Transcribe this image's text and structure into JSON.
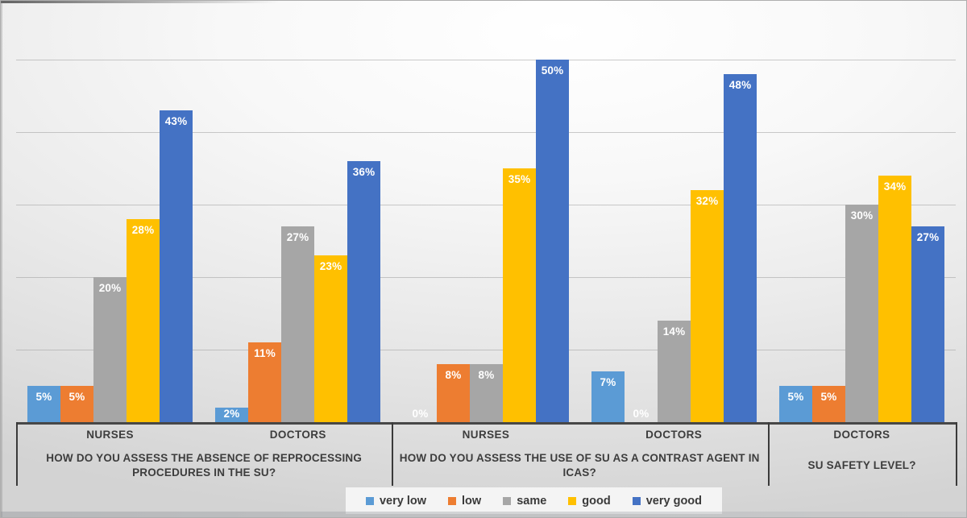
{
  "chart_data": {
    "type": "bar",
    "title": "",
    "xlabel": "",
    "ylabel": "",
    "value_suffix": "%",
    "ylim": [
      0,
      52
    ],
    "gridline_values": [
      10,
      20,
      30,
      40,
      50
    ],
    "grid": true,
    "legend_position": "bottom",
    "series": [
      {
        "name": "very low",
        "color": "#5B9BD5"
      },
      {
        "name": "low",
        "color": "#ED7D31"
      },
      {
        "name": "same",
        "color": "#A6A6A6"
      },
      {
        "name": "good",
        "color": "#FFC000"
      },
      {
        "name": "very good",
        "color": "#4472C4"
      }
    ],
    "sections": [
      {
        "question": "HOW DO YOU ASSESS THE ABSENCE OF REPROCESSING PROCEDURES IN THE SU?",
        "groups": [
          {
            "label": "NURSES",
            "values": [
              5,
              5,
              20,
              28,
              43
            ]
          },
          {
            "label": "DOCTORS",
            "values": [
              2,
              11,
              27,
              23,
              36
            ]
          }
        ]
      },
      {
        "question": "HOW DO YOU ASSESS THE USE OF SU AS A CONTRAST AGENT IN ICAS?",
        "groups": [
          {
            "label": "NURSES",
            "values": [
              0,
              8,
              8,
              35,
              50
            ]
          },
          {
            "label": "DOCTORS",
            "values": [
              7,
              0,
              14,
              32,
              48
            ]
          }
        ]
      },
      {
        "question": "SU SAFETY LEVEL?",
        "groups": [
          {
            "label": "DOCTORS",
            "values": [
              5,
              5,
              30,
              34,
              27
            ]
          }
        ]
      }
    ]
  }
}
